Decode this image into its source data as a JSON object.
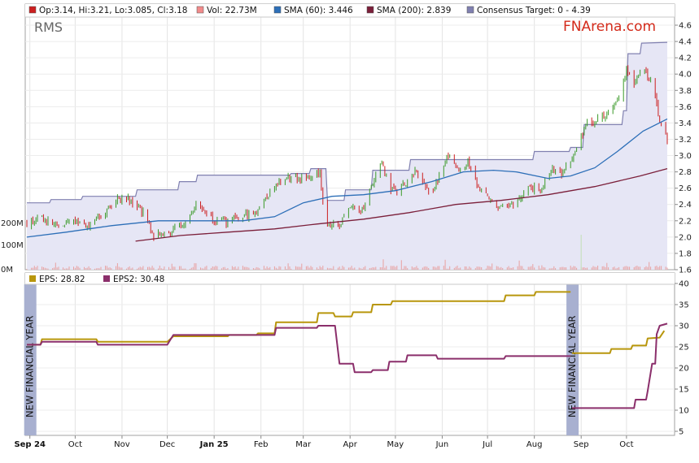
{
  "top_legend": [
    {
      "label": "Op:3.14, Hi:3.21, Lo:3.085, Cl:3.18",
      "color": "#cc1f1f"
    },
    {
      "label": "Vol: 22.73M",
      "color": "#f28b8b"
    },
    {
      "label": "SMA (60): 3.446",
      "color": "#2d6fb8"
    },
    {
      "label": "SMA (200): 2.839",
      "color": "#7b1f3a"
    },
    {
      "label": "Consensus Target: 0 - 4.39",
      "color": "#8080b0"
    }
  ],
  "bottom_legend": [
    {
      "label": "EPS: 28.82",
      "color": "#b8960c"
    },
    {
      "label": "EPS2: 30.48",
      "color": "#8b2f6b"
    }
  ],
  "ticker": "RMS",
  "brand": "FNArena.com",
  "colors": {
    "target_fill": "#e6e6f5",
    "target_line": "#8080b0",
    "sma60": "#2d6fb8",
    "sma200": "#7b1f3a",
    "up": "#3a9a28",
    "down": "#cc1f1f",
    "volume": "#e8a0a0",
    "eps": "#b8960c",
    "eps2": "#8b2f6b",
    "nfy_band": "#a8b0d0",
    "brand": "#d42a1a"
  },
  "new_financial_year_label": "NEW FINANCIAL YEAR",
  "volume_labels": [
    "200M",
    "100M",
    "0M"
  ],
  "chart_data": [
    {
      "type": "candlestick",
      "title": "",
      "x_range": [
        "2024-08-30",
        "2025-10-28"
      ],
      "ylim": [
        1.6,
        4.6
      ],
      "y_ticks": [
        "1.6",
        "1.8",
        "2.0",
        "2.2",
        "2.4",
        "2.6",
        "2.8",
        "3.0",
        "3.2",
        "3.4",
        "3.6",
        "3.8",
        "4.0",
        "4.2",
        "4.4",
        "4.6"
      ],
      "close_path": [
        [
          "2024-08-30",
          2.16
        ],
        [
          "2024-09-10",
          2.22
        ],
        [
          "2024-09-20",
          2.12
        ],
        [
          "2024-09-30",
          2.2
        ],
        [
          "2024-10-10",
          2.14
        ],
        [
          "2024-10-20",
          2.28
        ],
        [
          "2024-10-28",
          2.45
        ],
        [
          "2024-11-05",
          2.48
        ],
        [
          "2024-11-15",
          2.3
        ],
        [
          "2024-11-22",
          2.02
        ],
        [
          "2024-12-01",
          2.05
        ],
        [
          "2024-12-10",
          2.12
        ],
        [
          "2024-12-20",
          2.42
        ],
        [
          "2025-01-01",
          2.22
        ],
        [
          "2025-01-10",
          2.18
        ],
        [
          "2025-01-20",
          2.25
        ],
        [
          "2025-01-28",
          2.3
        ],
        [
          "2025-02-05",
          2.5
        ],
        [
          "2025-02-15",
          2.72
        ],
        [
          "2025-02-25",
          2.72
        ],
        [
          "2025-03-05",
          2.75
        ],
        [
          "2025-03-12",
          2.78
        ],
        [
          "2025-03-16",
          2.15
        ],
        [
          "2025-03-25",
          2.15
        ],
        [
          "2025-04-01",
          2.35
        ],
        [
          "2025-04-08",
          2.3
        ],
        [
          "2025-04-15",
          2.6
        ],
        [
          "2025-04-22",
          2.9
        ],
        [
          "2025-04-28",
          2.55
        ],
        [
          "2025-05-08",
          2.65
        ],
        [
          "2025-05-15",
          2.82
        ],
        [
          "2025-05-25",
          2.5
        ],
        [
          "2025-06-01",
          2.85
        ],
        [
          "2025-06-05",
          3.0
        ],
        [
          "2025-06-12",
          2.78
        ],
        [
          "2025-06-18",
          2.95
        ],
        [
          "2025-06-25",
          2.6
        ],
        [
          "2025-07-05",
          2.42
        ],
        [
          "2025-07-12",
          2.35
        ],
        [
          "2025-07-20",
          2.42
        ],
        [
          "2025-07-28",
          2.65
        ],
        [
          "2025-08-05",
          2.55
        ],
        [
          "2025-08-12",
          2.82
        ],
        [
          "2025-08-20",
          2.78
        ],
        [
          "2025-08-28",
          3.05
        ],
        [
          "2025-09-05",
          3.42
        ],
        [
          "2025-09-12",
          3.45
        ],
        [
          "2025-09-20",
          3.55
        ],
        [
          "2025-09-26",
          3.72
        ],
        [
          "2025-10-01",
          4.05
        ],
        [
          "2025-10-06",
          3.9
        ],
        [
          "2025-10-12",
          4.1
        ],
        [
          "2025-10-18",
          3.9
        ],
        [
          "2025-10-22",
          3.5
        ],
        [
          "2025-10-28",
          3.18
        ]
      ],
      "sma60": [
        [
          "2024-08-30",
          2.0
        ],
        [
          "2024-09-25",
          2.06
        ],
        [
          "2024-10-25",
          2.14
        ],
        [
          "2024-11-25",
          2.2
        ],
        [
          "2024-12-20",
          2.2
        ],
        [
          "2025-01-20",
          2.2
        ],
        [
          "2025-02-10",
          2.25
        ],
        [
          "2025-03-01",
          2.42
        ],
        [
          "2025-03-20",
          2.5
        ],
        [
          "2025-04-10",
          2.52
        ],
        [
          "2025-05-01",
          2.57
        ],
        [
          "2025-05-25",
          2.68
        ],
        [
          "2025-06-15",
          2.8
        ],
        [
          "2025-07-05",
          2.82
        ],
        [
          "2025-07-20",
          2.8
        ],
        [
          "2025-08-10",
          2.72
        ],
        [
          "2025-08-25",
          2.75
        ],
        [
          "2025-09-10",
          2.85
        ],
        [
          "2025-09-25",
          3.05
        ],
        [
          "2025-10-12",
          3.3
        ],
        [
          "2025-10-28",
          3.45
        ]
      ],
      "sma200": [
        [
          "2024-11-10",
          1.95
        ],
        [
          "2024-12-10",
          2.02
        ],
        [
          "2025-01-10",
          2.06
        ],
        [
          "2025-02-10",
          2.1
        ],
        [
          "2025-03-10",
          2.16
        ],
        [
          "2025-04-10",
          2.22
        ],
        [
          "2025-05-10",
          2.3
        ],
        [
          "2025-06-10",
          2.4
        ],
        [
          "2025-07-10",
          2.45
        ],
        [
          "2025-08-10",
          2.52
        ],
        [
          "2025-09-10",
          2.62
        ],
        [
          "2025-10-10",
          2.75
        ],
        [
          "2025-10-28",
          2.84
        ]
      ],
      "consensus_target": [
        [
          "2024-08-30",
          2.42
        ],
        [
          "2024-09-14",
          2.42
        ],
        [
          "2024-09-15",
          2.46
        ],
        [
          "2024-10-05",
          2.46
        ],
        [
          "2024-10-06",
          2.5
        ],
        [
          "2024-11-10",
          2.5
        ],
        [
          "2024-11-11",
          2.58
        ],
        [
          "2024-12-08",
          2.58
        ],
        [
          "2024-12-09",
          2.68
        ],
        [
          "2024-12-20",
          2.68
        ],
        [
          "2024-12-21",
          2.76
        ],
        [
          "2025-02-20",
          2.76
        ],
        [
          "2025-02-21",
          2.78
        ],
        [
          "2025-03-05",
          2.78
        ],
        [
          "2025-03-06",
          2.84
        ],
        [
          "2025-03-16",
          2.84
        ],
        [
          "2025-03-17",
          2.45
        ],
        [
          "2025-03-28",
          2.45
        ],
        [
          "2025-03-29",
          2.58
        ],
        [
          "2025-04-15",
          2.58
        ],
        [
          "2025-04-16",
          2.82
        ],
        [
          "2025-05-10",
          2.82
        ],
        [
          "2025-05-11",
          2.95
        ],
        [
          "2025-07-31",
          2.95
        ],
        [
          "2025-08-01",
          3.05
        ],
        [
          "2025-08-24",
          3.05
        ],
        [
          "2025-08-25",
          3.1
        ],
        [
          "2025-09-02",
          3.1
        ],
        [
          "2025-09-03",
          3.38
        ],
        [
          "2025-09-28",
          3.38
        ],
        [
          "2025-09-29",
          3.55
        ],
        [
          "2025-10-01",
          3.55
        ],
        [
          "2025-10-02",
          4.25
        ],
        [
          "2025-10-10",
          4.25
        ],
        [
          "2025-10-11",
          4.38
        ],
        [
          "2025-10-28",
          4.39
        ]
      ],
      "last": {
        "open": 3.14,
        "high": 3.21,
        "low": 3.085,
        "close": 3.18,
        "volume_m": 22.73
      }
    },
    {
      "type": "line",
      "title": "",
      "x_range": [
        "2024-08-30",
        "2025-10-28"
      ],
      "ylim": [
        5,
        40
      ],
      "y_ticks": [
        "5",
        "10",
        "15",
        "20",
        "25",
        "30",
        "35",
        "40"
      ],
      "x_ticks": [
        {
          "label": "Sep 24",
          "date": "2024-09-01",
          "bold": true
        },
        {
          "label": "Oct",
          "date": "2024-10-01"
        },
        {
          "label": "Nov",
          "date": "2024-11-01"
        },
        {
          "label": "Dec",
          "date": "2024-12-01"
        },
        {
          "label": "Jan 25",
          "date": "2025-01-01",
          "bold": true
        },
        {
          "label": "Feb",
          "date": "2025-02-01"
        },
        {
          "label": "Mar",
          "date": "2025-03-01"
        },
        {
          "label": "Apr",
          "date": "2025-04-01"
        },
        {
          "label": "May",
          "date": "2025-05-01"
        },
        {
          "label": "Jun",
          "date": "2025-06-01"
        },
        {
          "label": "Jul",
          "date": "2025-07-01"
        },
        {
          "label": "Aug",
          "date": "2025-08-01"
        },
        {
          "label": "Sep",
          "date": "2025-09-01"
        },
        {
          "label": "Oct",
          "date": "2025-10-01"
        }
      ],
      "new_financial_year_dates": [
        "2024-09-01",
        "2025-08-26"
      ],
      "series": [
        {
          "name": "EPS",
          "segments": [
            [
              [
                "2024-08-30",
                25.5
              ],
              [
                "2024-09-08",
                25.5
              ],
              [
                "2024-09-09",
                26.8
              ],
              [
                "2024-10-15",
                26.8
              ],
              [
                "2024-10-16",
                26.2
              ],
              [
                "2024-12-01",
                26.2
              ],
              [
                "2024-12-05",
                27.5
              ],
              [
                "2025-01-10",
                27.5
              ],
              [
                "2025-01-11",
                27.8
              ],
              [
                "2025-01-29",
                27.8
              ],
              [
                "2025-01-30",
                28.2
              ],
              [
                "2025-02-10",
                28.2
              ],
              [
                "2025-02-11",
                30.8
              ],
              [
                "2025-03-10",
                30.8
              ],
              [
                "2025-03-11",
                33.0
              ],
              [
                "2025-03-21",
                33.0
              ],
              [
                "2025-03-22",
                32.2
              ],
              [
                "2025-04-02",
                32.2
              ],
              [
                "2025-04-03",
                33.2
              ],
              [
                "2025-04-15",
                33.2
              ],
              [
                "2025-04-16",
                35.0
              ],
              [
                "2025-04-28",
                35.0
              ],
              [
                "2025-04-29",
                35.8
              ],
              [
                "2025-07-12",
                35.8
              ],
              [
                "2025-07-13",
                37.2
              ],
              [
                "2025-08-01",
                37.2
              ],
              [
                "2025-08-02",
                38.0
              ],
              [
                "2025-08-25",
                38.0
              ]
            ],
            [
              [
                "2025-08-26",
                23.5
              ],
              [
                "2025-09-20",
                23.5
              ],
              [
                "2025-09-21",
                24.5
              ],
              [
                "2025-10-04",
                24.5
              ],
              [
                "2025-10-05",
                25.3
              ],
              [
                "2025-10-14",
                25.3
              ],
              [
                "2025-10-15",
                27.0
              ],
              [
                "2025-10-23",
                27.2
              ],
              [
                "2025-10-26",
                28.8
              ]
            ]
          ]
        },
        {
          "name": "EPS2",
          "segments": [
            [
              [
                "2024-08-30",
                25.5
              ],
              [
                "2024-09-08",
                25.5
              ],
              [
                "2024-09-09",
                26.2
              ],
              [
                "2024-10-15",
                26.2
              ],
              [
                "2024-10-16",
                25.5
              ],
              [
                "2024-12-01",
                25.5
              ],
              [
                "2024-12-05",
                27.8
              ],
              [
                "2025-02-10",
                27.8
              ],
              [
                "2025-02-11",
                29.5
              ],
              [
                "2025-03-10",
                29.5
              ],
              [
                "2025-03-11",
                30.0
              ],
              [
                "2025-03-22",
                30.0
              ],
              [
                "2025-03-25",
                21.0
              ],
              [
                "2025-04-03",
                21.0
              ],
              [
                "2025-04-04",
                19.0
              ],
              [
                "2025-04-15",
                19.0
              ],
              [
                "2025-04-16",
                19.5
              ],
              [
                "2025-04-26",
                19.5
              ],
              [
                "2025-04-27",
                21.5
              ],
              [
                "2025-05-08",
                21.5
              ],
              [
                "2025-05-09",
                23.0
              ],
              [
                "2025-05-28",
                23.0
              ],
              [
                "2025-05-29",
                22.2
              ],
              [
                "2025-07-12",
                22.2
              ],
              [
                "2025-07-13",
                22.8
              ],
              [
                "2025-08-25",
                22.8
              ]
            ],
            [
              [
                "2025-08-26",
                10.5
              ],
              [
                "2025-10-06",
                10.5
              ],
              [
                "2025-10-07",
                12.5
              ],
              [
                "2025-10-14",
                12.5
              ],
              [
                "2025-10-15",
                14.5
              ],
              [
                "2025-10-18",
                21.0
              ],
              [
                "2025-10-20",
                21.0
              ],
              [
                "2025-10-21",
                28.0
              ],
              [
                "2025-10-23",
                30.0
              ],
              [
                "2025-10-28",
                30.5
              ]
            ]
          ]
        }
      ]
    }
  ]
}
